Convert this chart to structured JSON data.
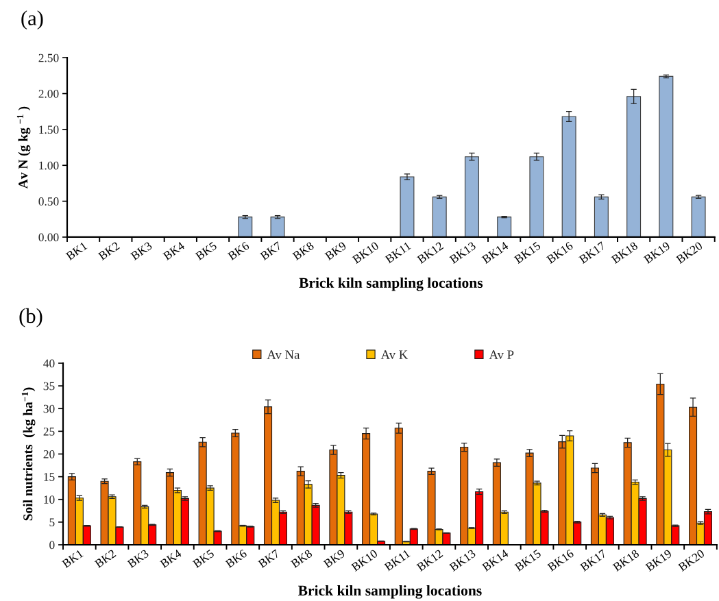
{
  "chart_data": [
    {
      "type": "bar",
      "title": "(a)",
      "xlabel": "Brick kiln sampling locations",
      "ylabel": "Av N (g kg $^{−1}$ )",
      "categories": [
        "BK1",
        "BK2",
        "BK3",
        "BK4",
        "BK5",
        "BK6",
        "BK7",
        "BK8",
        "BK9",
        "BK10",
        "BK11",
        "BK12",
        "BK13",
        "BK14",
        "BK15",
        "BK16",
        "BK17",
        "BK18",
        "BK19",
        "BK20"
      ],
      "series": [
        {
          "color": "#95b3d7",
          "values": [
            null,
            null,
            null,
            null,
            null,
            0.28,
            0.28,
            null,
            null,
            null,
            0.84,
            0.56,
            1.12,
            0.28,
            1.12,
            1.68,
            0.56,
            1.96,
            2.24,
            0.56
          ],
          "errors": [
            null,
            null,
            null,
            null,
            null,
            0.02,
            0.02,
            null,
            null,
            null,
            0.04,
            0.02,
            0.05,
            0.01,
            0.05,
            0.07,
            0.03,
            0.1,
            0.02,
            0.02
          ]
        }
      ],
      "ylim": [
        0,
        2.5
      ],
      "yticks": [
        {
          "value": 0,
          "label": "0.00"
        },
        {
          "value": 0.5,
          "label": "0.50"
        },
        {
          "value": 1,
          "label": "1.00"
        },
        {
          "value": 1.5,
          "label": "1.50"
        },
        {
          "value": 2,
          "label": "2.00"
        },
        {
          "value": 2.5,
          "label": "2.50"
        }
      ],
      "grid": false
    },
    {
      "type": "bar",
      "title": "(b)",
      "xlabel": "Brick kiln sampling locations",
      "ylabel": "Soil nutrients  (kg ha$^{−1}$)",
      "categories": [
        "BK1",
        "BK2",
        "BK3",
        "BK4",
        "BK5",
        "BK6",
        "BK7",
        "BK8",
        "BK9",
        "BK10",
        "BK11",
        "BK12",
        "BK13",
        "BK14",
        "BK15",
        "BK16",
        "BK17",
        "BK18",
        "BK19",
        "BK20"
      ],
      "series": [
        {
          "name": "Av Na",
          "color": "#e46c0a",
          "values": [
            15.0,
            14.0,
            18.3,
            15.9,
            22.6,
            24.6,
            30.4,
            16.2,
            20.9,
            24.5,
            25.7,
            16.2,
            21.5,
            18.1,
            20.2,
            22.7,
            16.9,
            22.5,
            35.4,
            30.3
          ],
          "errors": [
            0.7,
            0.5,
            0.7,
            0.8,
            1.0,
            0.8,
            1.5,
            1.0,
            1.0,
            1.2,
            1.1,
            0.7,
            0.9,
            0.8,
            0.8,
            1.4,
            1.0,
            1.0,
            2.3,
            2.0
          ]
        },
        {
          "name": "Av K",
          "color": "#ffc000",
          "values": [
            10.3,
            10.6,
            8.4,
            12.0,
            12.5,
            4.2,
            9.8,
            13.3,
            15.3,
            6.8,
            0.7,
            3.4,
            3.7,
            7.2,
            13.6,
            24.0,
            6.6,
            13.8,
            20.9,
            4.8
          ],
          "errors": [
            0.5,
            0.4,
            0.3,
            0.5,
            0.5,
            0.1,
            0.5,
            0.8,
            0.6,
            0.2,
            0.05,
            0.1,
            0.1,
            0.3,
            0.4,
            1.1,
            0.3,
            0.5,
            1.4,
            0.3
          ]
        },
        {
          "name": "Av P",
          "color": "#ff0000",
          "values": [
            4.2,
            3.9,
            4.4,
            10.2,
            3.0,
            4.0,
            7.2,
            8.7,
            7.2,
            0.8,
            3.5,
            2.6,
            11.7,
            null,
            7.4,
            5.0,
            6.0,
            10.2,
            4.2,
            7.3
          ],
          "errors": [
            0.1,
            0.05,
            0.1,
            0.4,
            0.1,
            0.1,
            0.3,
            0.4,
            0.3,
            0.05,
            0.1,
            0.05,
            0.6,
            null,
            0.2,
            0.2,
            0.3,
            0.4,
            0.15,
            0.5
          ]
        }
      ],
      "ylim": [
        0,
        40
      ],
      "yticks": [
        0,
        5,
        10,
        15,
        20,
        25,
        30,
        35,
        40
      ],
      "grid": false,
      "legend": "top"
    }
  ]
}
